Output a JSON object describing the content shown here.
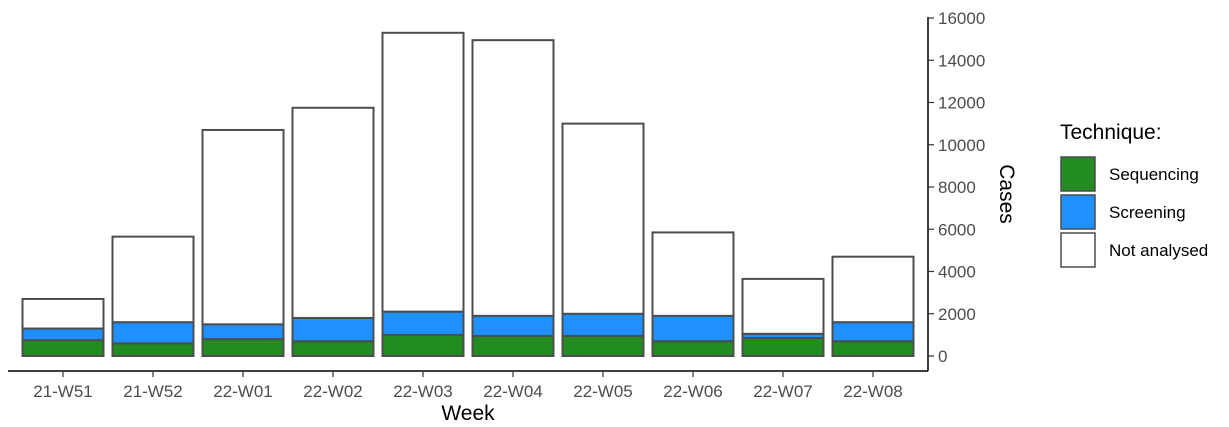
{
  "chart_data": {
    "type": "bar",
    "stacked": true,
    "xlabel": "Week",
    "ylabel": "Cases",
    "ylim": [
      0,
      16000
    ],
    "y_ticks": [
      0,
      2000,
      4000,
      6000,
      8000,
      10000,
      12000,
      14000,
      16000
    ],
    "y_axis_side": "right",
    "categories": [
      "21-W51",
      "21-W52",
      "22-W01",
      "22-W02",
      "22-W03",
      "22-W04",
      "22-W05",
      "22-W06",
      "22-W07",
      "22-W08"
    ],
    "legend": {
      "title": "Technique:",
      "position": "right"
    },
    "grid": false,
    "series": [
      {
        "name": "Sequencing",
        "color": "#228b22",
        "values": [
          750,
          600,
          800,
          700,
          1000,
          950,
          950,
          700,
          850,
          700
        ]
      },
      {
        "name": "Screening",
        "color": "#1e90ff",
        "values": [
          550,
          1000,
          700,
          1100,
          1100,
          950,
          1050,
          1200,
          200,
          900
        ]
      },
      {
        "name": "Not analysed",
        "color": "#ffffff",
        "values": [
          1400,
          4050,
          9200,
          9950,
          13200,
          13050,
          9000,
          3950,
          2600,
          3100
        ]
      }
    ]
  }
}
